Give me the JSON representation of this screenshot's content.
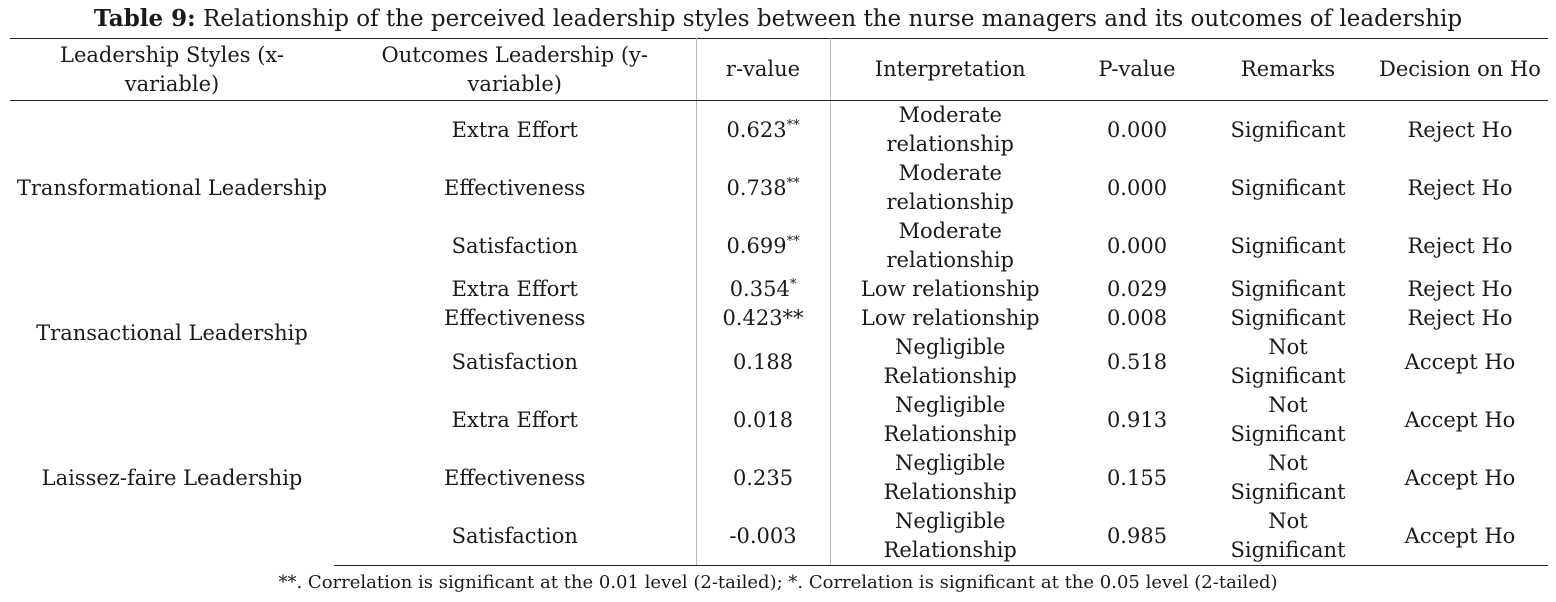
{
  "title": {
    "label": "Table 9:",
    "text": "Relationship of the perceived leadership styles between the nurse managers and its outcomes of leadership"
  },
  "headers": {
    "style": "Leadership Styles (x-variable)",
    "outcome": "Outcomes Leadership (y-variable)",
    "r": "r-value",
    "interp": "Interpretation",
    "p": "P-value",
    "remarks": "Remarks",
    "decision": "Decision on Ho"
  },
  "groups": [
    {
      "style": "Transformational Leadership",
      "rows": [
        {
          "outcome": "Extra Effort",
          "r": "0.623",
          "r_mark": "**",
          "interp": "Moderate relationship",
          "p": "0.000",
          "remarks": "Significant",
          "decision": "Reject Ho"
        },
        {
          "outcome": "Effectiveness",
          "r": "0.738",
          "r_mark": "**",
          "interp": "Moderate relationship",
          "p": "0.000",
          "remarks": "Significant",
          "decision": "Reject Ho"
        },
        {
          "outcome": "Satisfaction",
          "r": "0.699",
          "r_mark": "**",
          "interp": "Moderate relationship",
          "p": "0.000",
          "remarks": "Significant",
          "decision": "Reject Ho"
        }
      ]
    },
    {
      "style": "Transactional Leadership",
      "rows": [
        {
          "outcome": "Extra Effort",
          "r": "0.354",
          "r_mark": "*",
          "interp": "Low relationship",
          "p": "0.029",
          "remarks": "Significant",
          "decision": "Reject Ho"
        },
        {
          "outcome": "Effectiveness",
          "r": "0.423**",
          "r_mark": "",
          "interp": "Low relationship",
          "p": "0.008",
          "remarks": "Significant",
          "decision": "Reject Ho"
        },
        {
          "outcome": "Satisfaction",
          "r": "0.188",
          "r_mark": "",
          "interp": "Negligible Relationship",
          "p": "0.518",
          "remarks": "Not Significant",
          "decision": "Accept Ho"
        }
      ]
    },
    {
      "style": "Laissez-faire Leadership",
      "rows": [
        {
          "outcome": "Extra Effort",
          "r": "0.018",
          "r_mark": "",
          "interp": "Negligible Relationship",
          "p": "0.913",
          "remarks": "Not Significant",
          "decision": "Accept Ho"
        },
        {
          "outcome": "Effectiveness",
          "r": "0.235",
          "r_mark": "",
          "interp": "Negligible Relationship",
          "p": "0.155",
          "remarks": "Not Significant",
          "decision": "Accept Ho"
        },
        {
          "outcome": "Satisfaction",
          "r": "-0.003",
          "r_mark": "",
          "interp": "Negligible Relationship",
          "p": "0.985",
          "remarks": "Not Significant",
          "decision": "Accept Ho"
        }
      ]
    }
  ],
  "footnote": "**. Correlation is significant at the 0.01 level (2-tailed); *. Correlation is significant at the 0.05 level (2-tailed)"
}
